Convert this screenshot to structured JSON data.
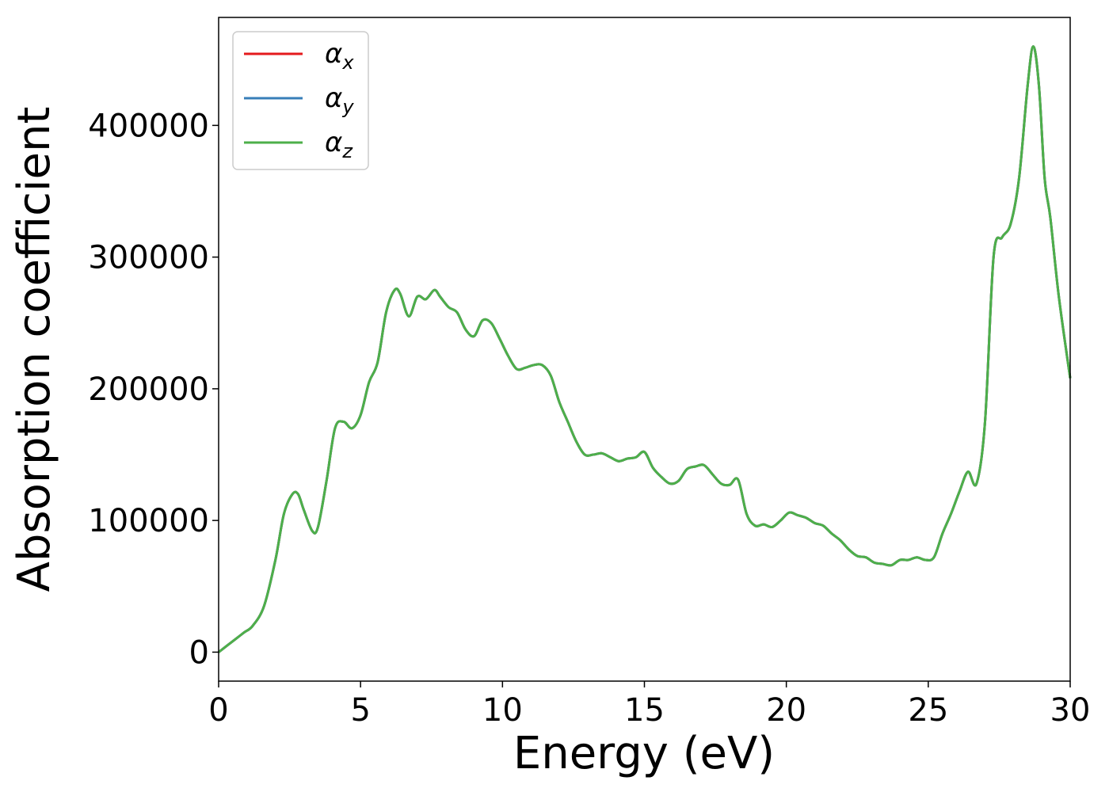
{
  "chart_data": {
    "type": "line",
    "title": "",
    "xlabel": "Energy (eV)",
    "ylabel": "Absorption coefficient",
    "xlim": [
      0,
      30
    ],
    "ylim": [
      -22000,
      482000
    ],
    "x_ticks": [
      0,
      5,
      10,
      15,
      20,
      25,
      30
    ],
    "y_ticks": [
      0,
      100000,
      200000,
      300000,
      400000
    ],
    "grid": false,
    "legend_position": "top-left",
    "x": [
      0,
      0.3,
      0.6,
      0.9,
      1.2,
      1.6,
      2.0,
      2.3,
      2.6,
      2.8,
      3.0,
      3.3,
      3.5,
      3.8,
      4.1,
      4.4,
      4.7,
      5.0,
      5.3,
      5.6,
      5.9,
      6.2,
      6.4,
      6.7,
      7.0,
      7.3,
      7.6,
      7.8,
      8.1,
      8.4,
      8.7,
      9.0,
      9.3,
      9.6,
      9.9,
      10.2,
      10.5,
      10.8,
      11.1,
      11.4,
      11.7,
      12.0,
      12.3,
      12.6,
      12.9,
      13.2,
      13.5,
      13.8,
      14.1,
      14.4,
      14.7,
      15.0,
      15.3,
      15.6,
      15.9,
      16.2,
      16.5,
      16.8,
      17.1,
      17.4,
      17.7,
      18.0,
      18.3,
      18.6,
      18.9,
      19.2,
      19.5,
      19.8,
      20.1,
      20.4,
      20.7,
      21.0,
      21.3,
      21.6,
      21.9,
      22.2,
      22.5,
      22.8,
      23.1,
      23.4,
      23.7,
      24.0,
      24.3,
      24.6,
      24.9,
      25.2,
      25.5,
      25.8,
      26.1,
      26.4,
      26.7,
      27.0,
      27.3,
      27.6,
      27.9,
      28.2,
      28.5,
      28.7,
      28.9,
      29.1,
      29.3,
      29.6,
      30.0
    ],
    "series": [
      {
        "name": "α",
        "subscript": "x",
        "color": "#e41a1c",
        "y": [
          0,
          5000,
          10000,
          15000,
          20000,
          35000,
          70000,
          105000,
          120000,
          120000,
          108000,
          92000,
          95000,
          130000,
          170000,
          175000,
          170000,
          180000,
          205000,
          220000,
          258000,
          275000,
          272000,
          255000,
          270000,
          268000,
          275000,
          270000,
          262000,
          258000,
          245000,
          240000,
          252000,
          250000,
          238000,
          225000,
          215000,
          216000,
          218000,
          218000,
          210000,
          190000,
          175000,
          160000,
          150000,
          150000,
          151000,
          148000,
          145000,
          147000,
          148000,
          152000,
          140000,
          133000,
          128000,
          130000,
          139000,
          141000,
          142000,
          135000,
          128000,
          127000,
          131000,
          105000,
          96000,
          97000,
          95000,
          100000,
          106000,
          104000,
          102000,
          98000,
          96000,
          90000,
          85000,
          78000,
          73000,
          72000,
          68000,
          67000,
          66000,
          70000,
          70000,
          72000,
          70000,
          72000,
          90000,
          105000,
          122000,
          137000,
          128000,
          175000,
          300000,
          315000,
          325000,
          360000,
          430000,
          460000,
          430000,
          360000,
          330000,
          270000,
          208000
        ]
      },
      {
        "name": "α",
        "subscript": "y",
        "color": "#377eb8",
        "y": [
          0,
          5000,
          10000,
          15000,
          20000,
          35000,
          70000,
          105000,
          120000,
          120000,
          108000,
          92000,
          95000,
          130000,
          170000,
          175000,
          170000,
          180000,
          205000,
          220000,
          258000,
          275000,
          272000,
          255000,
          270000,
          268000,
          275000,
          270000,
          262000,
          258000,
          245000,
          240000,
          252000,
          250000,
          238000,
          225000,
          215000,
          216000,
          218000,
          218000,
          210000,
          190000,
          175000,
          160000,
          150000,
          150000,
          151000,
          148000,
          145000,
          147000,
          148000,
          152000,
          140000,
          133000,
          128000,
          130000,
          139000,
          141000,
          142000,
          135000,
          128000,
          127000,
          131000,
          105000,
          96000,
          97000,
          95000,
          100000,
          106000,
          104000,
          102000,
          98000,
          96000,
          90000,
          85000,
          78000,
          73000,
          72000,
          68000,
          67000,
          66000,
          70000,
          70000,
          72000,
          70000,
          72000,
          90000,
          105000,
          122000,
          137000,
          128000,
          175000,
          300000,
          315000,
          325000,
          360000,
          430000,
          460000,
          430000,
          360000,
          330000,
          270000,
          208000
        ]
      },
      {
        "name": "α",
        "subscript": "z",
        "color": "#4daf4a",
        "y": [
          0,
          5000,
          10000,
          15000,
          20000,
          35000,
          70000,
          105000,
          120000,
          120000,
          108000,
          92000,
          95000,
          130000,
          170000,
          175000,
          170000,
          180000,
          205000,
          220000,
          258000,
          275000,
          272000,
          255000,
          270000,
          268000,
          275000,
          270000,
          262000,
          258000,
          245000,
          240000,
          252000,
          250000,
          238000,
          225000,
          215000,
          216000,
          218000,
          218000,
          210000,
          190000,
          175000,
          160000,
          150000,
          150000,
          151000,
          148000,
          145000,
          147000,
          148000,
          152000,
          140000,
          133000,
          128000,
          130000,
          139000,
          141000,
          142000,
          135000,
          128000,
          127000,
          131000,
          105000,
          96000,
          97000,
          95000,
          100000,
          106000,
          104000,
          102000,
          98000,
          96000,
          90000,
          85000,
          78000,
          73000,
          72000,
          68000,
          67000,
          66000,
          70000,
          70000,
          72000,
          70000,
          72000,
          90000,
          105000,
          122000,
          137000,
          128000,
          175000,
          300000,
          315000,
          325000,
          360000,
          430000,
          460000,
          430000,
          360000,
          330000,
          270000,
          208000
        ]
      }
    ]
  }
}
